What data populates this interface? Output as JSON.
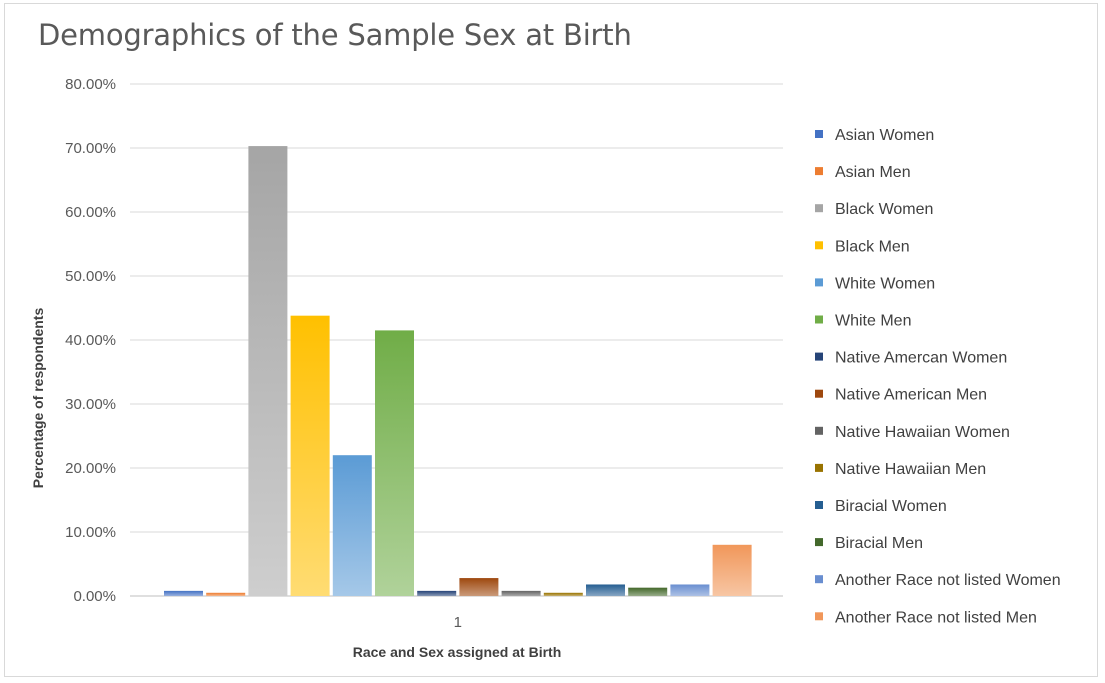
{
  "chart_data": {
    "type": "bar",
    "title": "Demographics of the Sample Sex at Birth",
    "xlabel": "Race and Sex assigned at Birth",
    "ylabel": "Percentage of respondents",
    "categories": [
      "1"
    ],
    "ylim": [
      0,
      0.8
    ],
    "yticks": [
      "0.00%",
      "10.00%",
      "20.00%",
      "30.00%",
      "40.00%",
      "50.00%",
      "60.00%",
      "70.00%",
      "80.00%"
    ],
    "grid": true,
    "legend_position": "right",
    "series": [
      {
        "name": "Asian Women",
        "values": [
          0.008
        ],
        "color": "#4472c4"
      },
      {
        "name": "Asian Men",
        "values": [
          0.005
        ],
        "color": "#ed7d31"
      },
      {
        "name": "Black Women",
        "values": [
          0.703
        ],
        "color": "#a5a5a5"
      },
      {
        "name": "Black Men",
        "values": [
          0.438
        ],
        "color": "#ffc000"
      },
      {
        "name": "White Women",
        "values": [
          0.22
        ],
        "color": "#5b9bd5"
      },
      {
        "name": "White Men",
        "values": [
          0.415
        ],
        "color": "#70ad47"
      },
      {
        "name": "Native Amercan Women",
        "values": [
          0.008
        ],
        "color": "#264478"
      },
      {
        "name": "Native American Men",
        "values": [
          0.028
        ],
        "color": "#9e480e"
      },
      {
        "name": "Native Hawaiian Women",
        "values": [
          0.008
        ],
        "color": "#636363"
      },
      {
        "name": "Native Hawaiian Men",
        "values": [
          0.005
        ],
        "color": "#997300"
      },
      {
        "name": "Biracial Women",
        "values": [
          0.018
        ],
        "color": "#255e91"
      },
      {
        "name": "Biracial Men",
        "values": [
          0.013
        ],
        "color": "#43682b"
      },
      {
        "name": "Another Race not listed Women",
        "values": [
          0.018
        ],
        "color": "#698ed0"
      },
      {
        "name": "Another Race not listed Men",
        "values": [
          0.08
        ],
        "color": "#f1975a"
      }
    ]
  }
}
